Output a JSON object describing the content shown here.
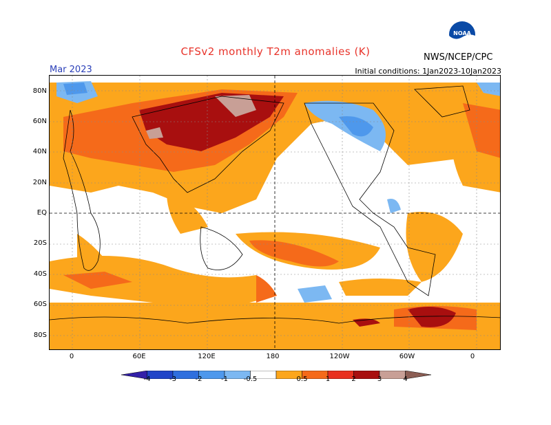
{
  "header": {
    "title": "CFSv2 monthly T2m anomalies (K)",
    "org": "NWS/NCEP/CPC",
    "logo_text": "NOAA",
    "month": "Mar 2023",
    "init": "Initial conditions: 1Jan2023-10Jan2023"
  },
  "axes": {
    "lat_labels": [
      "80N",
      "60N",
      "40N",
      "20N",
      "EQ",
      "20S",
      "40S",
      "60S",
      "80S"
    ],
    "lon_labels": [
      "0",
      "60E",
      "120E",
      "180",
      "120W",
      "60W",
      "0"
    ]
  },
  "colorbar": {
    "labels": [
      "-4",
      "-3",
      "-2",
      "-1",
      "-0.5",
      "0.5",
      "1",
      "2",
      "3",
      "4"
    ],
    "colors": [
      "#3320a8",
      "#2145c8",
      "#2f6fde",
      "#4e98ec",
      "#7cb8f2",
      "#ffffff",
      "#fca61c",
      "#f56a1a",
      "#e8301f",
      "#a80f0f",
      "#c89f96",
      "#8c5e54"
    ]
  }
}
